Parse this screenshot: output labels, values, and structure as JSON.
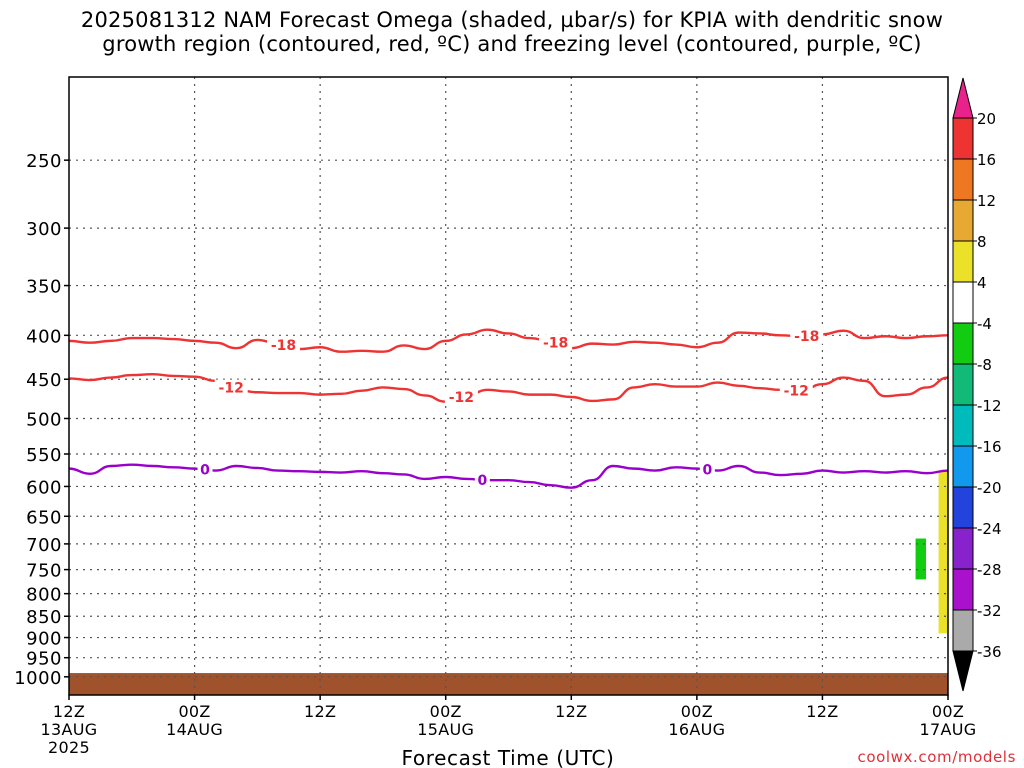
{
  "title_line1": "2025081312 NAM Forecast Omega (shaded, µbar/s) for KPIA with dendritic snow",
  "title_line2": "growth region (contoured, red, ºC) and freezing level (contoured, purple, ºC)",
  "credit": "coolwx.com/models",
  "chart_data": {
    "type": "contour",
    "xlabel": "Forecast Time (UTC)",
    "ylabel": "",
    "x_range_hours": [
      0,
      84
    ],
    "y_axis": "pressure (hPa), log scale, inverted",
    "y_range": [
      1050,
      200
    ],
    "x_ticks": [
      {
        "hour": 0,
        "labels": [
          "12Z",
          "13AUG",
          "2025"
        ]
      },
      {
        "hour": 12,
        "labels": [
          "00Z",
          "14AUG"
        ]
      },
      {
        "hour": 24,
        "labels": [
          "12Z"
        ]
      },
      {
        "hour": 36,
        "labels": [
          "00Z",
          "15AUG"
        ]
      },
      {
        "hour": 48,
        "labels": [
          "12Z"
        ]
      },
      {
        "hour": 60,
        "labels": [
          "00Z",
          "16AUG"
        ]
      },
      {
        "hour": 72,
        "labels": [
          "12Z"
        ]
      },
      {
        "hour": 84,
        "labels": [
          "00Z",
          "17AUG"
        ]
      }
    ],
    "y_ticks": [
      250,
      300,
      350,
      400,
      450,
      500,
      550,
      600,
      650,
      700,
      750,
      800,
      850,
      900,
      950,
      1000
    ],
    "grid": true,
    "series": [
      {
        "name": "",
        "label": "-18",
        "color": "#ee3333",
        "label_at_hours": [
          20.5,
          46.5,
          70.5
        ],
        "x": [
          0,
          2,
          4,
          6,
          8,
          10,
          12,
          14,
          16,
          18,
          20,
          22,
          24,
          26,
          28,
          30,
          32,
          34,
          36,
          38,
          40,
          42,
          44,
          46,
          48,
          50,
          52,
          54,
          56,
          58,
          60,
          62,
          64,
          66,
          68,
          70,
          72,
          74,
          76,
          78,
          80,
          82,
          84
        ],
        "y": [
          406,
          408,
          406,
          403,
          403,
          404,
          406,
          408,
          414,
          405,
          409,
          415,
          413,
          418,
          417,
          418,
          411,
          415,
          406,
          399,
          394,
          398,
          403,
          406,
          414,
          409,
          410,
          407,
          408,
          410,
          413,
          408,
          397,
          398,
          400,
          401,
          399,
          395,
          403,
          401,
          403,
          401,
          400
        ]
      },
      {
        "name": "",
        "label": "-12",
        "color": "#ee3333",
        "label_at_hours": [
          15.5,
          37.5,
          69.5
        ],
        "x": [
          0,
          2,
          4,
          6,
          8,
          10,
          12,
          14,
          16,
          18,
          20,
          22,
          24,
          26,
          28,
          30,
          32,
          34,
          36,
          38,
          40,
          42,
          44,
          46,
          48,
          50,
          52,
          54,
          56,
          58,
          60,
          62,
          64,
          66,
          68,
          70,
          72,
          74,
          76,
          78,
          80,
          82,
          84
        ],
        "y": [
          449,
          451,
          448,
          445,
          444,
          446,
          447,
          452,
          463,
          466,
          467,
          467,
          469,
          468,
          464,
          460,
          462,
          470,
          478,
          470,
          463,
          465,
          469,
          469,
          472,
          477,
          475,
          460,
          456,
          459,
          459,
          454,
          458,
          461,
          463,
          464,
          456,
          448,
          452,
          471,
          469,
          460,
          448
        ]
      },
      {
        "name": "",
        "label": "0",
        "color": "#9900cc",
        "label_at_hours": [
          13,
          39.5,
          61
        ],
        "x": [
          0,
          2,
          4,
          6,
          8,
          10,
          12,
          14,
          16,
          18,
          20,
          22,
          24,
          26,
          28,
          30,
          32,
          34,
          36,
          38,
          40,
          42,
          44,
          46,
          48,
          50,
          52,
          54,
          56,
          58,
          60,
          62,
          64,
          66,
          68,
          70,
          72,
          74,
          76,
          78,
          80,
          82,
          84
        ],
        "y": [
          572,
          580,
          568,
          566,
          568,
          570,
          572,
          575,
          568,
          571,
          575,
          576,
          577,
          578,
          576,
          579,
          581,
          588,
          585,
          588,
          590,
          590,
          593,
          598,
          602,
          590,
          568,
          572,
          575,
          570,
          572,
          575,
          568,
          578,
          582,
          580,
          575,
          578,
          576,
          578,
          576,
          579,
          575
        ]
      }
    ],
    "shaded_regions": [
      {
        "label": "omega 4 to 8",
        "color": "#ebe128",
        "hour_range": [
          83.1,
          84
        ],
        "pressure_range": [
          575,
          890
        ]
      },
      {
        "label": "omega -8 to -4",
        "color": "#11cc11",
        "hour_range": [
          80.9,
          81.9
        ],
        "pressure_range": [
          690,
          770
        ]
      },
      {
        "label": "below ground",
        "color": "#a0522d",
        "hour_range": [
          0,
          84
        ],
        "pressure_range": [
          990,
          1050
        ]
      }
    ],
    "colorbar": {
      "labels": [
        "20",
        "16",
        "12",
        "8",
        "4",
        "-4",
        "-8",
        "-12",
        "-16",
        "-20",
        "-24",
        "-28",
        "-32",
        "-36"
      ],
      "colors": [
        "#e8228a",
        "#ee3333",
        "#ee7722",
        "#e8a933",
        "#ebe128",
        "#ffffff",
        "#11cc11",
        "#11bb77",
        "#00bbbb",
        "#1199ee",
        "#2244dd",
        "#8822cc",
        "#aa11cc",
        "#aaaaaa",
        "#000000"
      ]
    }
  }
}
